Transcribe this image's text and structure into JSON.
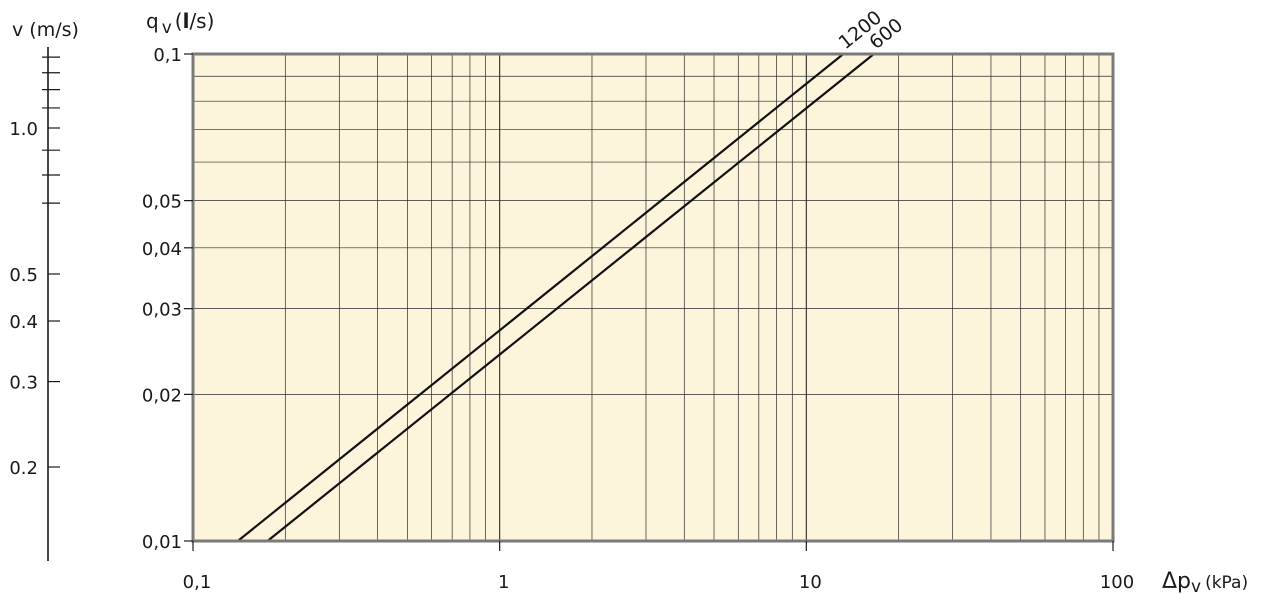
{
  "chart_data": {
    "type": "line",
    "x_scale": "log",
    "y_scale": "log",
    "xlim": [
      0.1,
      100
    ],
    "ylim": [
      0.01,
      0.1
    ],
    "grid": true,
    "x_ticks": [
      "0,1",
      "1",
      "10",
      "100"
    ],
    "x_tick_values": [
      0.1,
      1,
      10,
      100
    ],
    "y_ticks": [
      "0,01",
      "0,02",
      "0,03",
      "0,04",
      "0,05",
      "0,1"
    ],
    "y_tick_values": [
      0.01,
      0.02,
      0.03,
      0.04,
      0.05,
      0.1
    ],
    "xlabel": {
      "main": "Δp",
      "sub": "v",
      "unit": "(kPa)"
    },
    "ylabel": {
      "main": "q",
      "sub": "v",
      "unit_open": "(",
      "unit_bold": "l",
      "unit_close": "/s)"
    },
    "v_axis": {
      "label": "v (m/s)",
      "tick_labels": [
        "1.0",
        "0.5",
        "0.4",
        "0.3",
        "0.2"
      ],
      "tick_values": [
        1.0,
        0.5,
        0.4,
        0.3,
        0.2
      ],
      "minor_tick_values": [
        1.4,
        1.3,
        1.2,
        1.1,
        0.9,
        0.8,
        0.7
      ]
    },
    "series": [
      {
        "name": "1200",
        "points": [
          [
            0.14,
            0.01
          ],
          [
            13.2,
            0.1
          ]
        ]
      },
      {
        "name": "600",
        "points": [
          [
            0.175,
            0.01
          ],
          [
            16.6,
            0.1
          ]
        ]
      }
    ],
    "colors": {
      "plot_bg": "#fcf5dc",
      "grid": "#2a2a2a",
      "frame": "#7a7a7a",
      "line": "#111111"
    }
  }
}
